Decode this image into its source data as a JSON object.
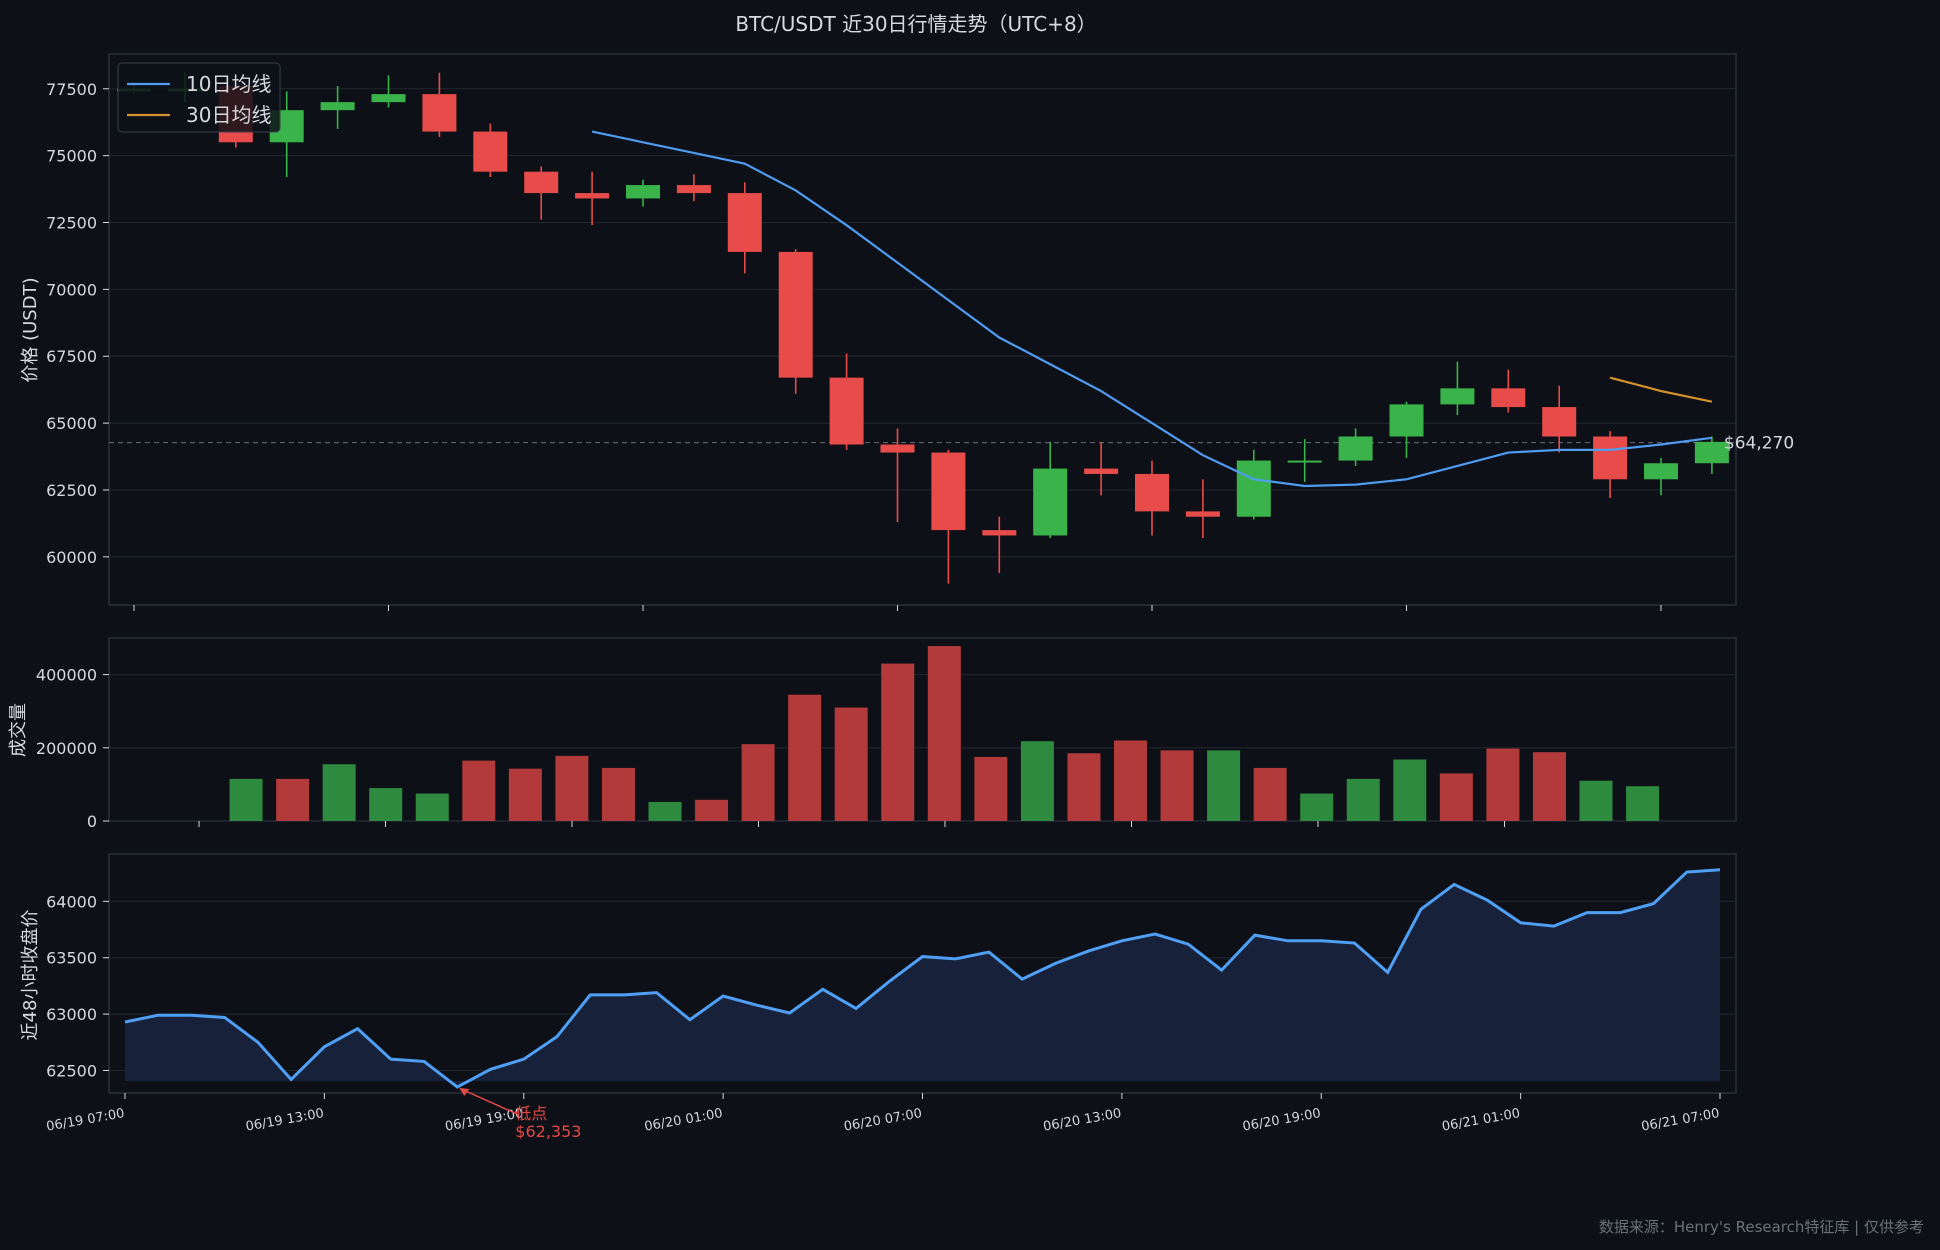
{
  "title": "BTC/USDT  近30日行情走势（UTC+8）",
  "footer": "数据来源：Henry's Research特征库 | 仅供参考",
  "colors": {
    "background": "#0d1017",
    "panel_border": "#2a2f3a",
    "grid": "#22262f",
    "text": "#d6d9de",
    "up": "#3ab44a",
    "down": "#e84c4a",
    "up_volume": "#2e8a3e",
    "down_volume": "#b23a3a",
    "ma10": "#4f9bf0",
    "ma30": "#d4932a",
    "close_line": "#4f9ff5",
    "close_fill": "#17223a",
    "annotation": "#e04a45",
    "footer": "#6b7079"
  },
  "chart_data": [
    {
      "type": "candlestick",
      "name": "price",
      "ylabel": "价格 (USDT)",
      "ylim": [
        58200,
        78800
      ],
      "yticks": [
        60000,
        62500,
        65000,
        67500,
        70000,
        72500,
        75000,
        77500
      ],
      "grid": true,
      "legend": {
        "placement": "top-left",
        "entries": [
          {
            "label": "10日均线",
            "color": "#4f9bf0"
          },
          {
            "label": "30日均线",
            "color": "#d4932a"
          }
        ]
      },
      "candles": [
        {
          "open": 77400,
          "high": 77700,
          "low": 77300,
          "close": 77500
        },
        {
          "open": 77400,
          "high": 78100,
          "low": 77000,
          "close": 77500
        },
        {
          "open": 77600,
          "high": 77800,
          "low": 75300,
          "close": 75500
        },
        {
          "open": 75500,
          "high": 77400,
          "low": 74200,
          "close": 76700
        },
        {
          "open": 76700,
          "high": 77600,
          "low": 76000,
          "close": 77000
        },
        {
          "open": 77000,
          "high": 78000,
          "low": 76800,
          "close": 77300
        },
        {
          "open": 77300,
          "high": 78100,
          "low": 75700,
          "close": 75900
        },
        {
          "open": 75900,
          "high": 76200,
          "low": 74200,
          "close": 74400
        },
        {
          "open": 74400,
          "high": 74600,
          "low": 72600,
          "close": 73600
        },
        {
          "open": 73600,
          "high": 74400,
          "low": 72400,
          "close": 73400
        },
        {
          "open": 73400,
          "high": 74100,
          "low": 73100,
          "close": 73900
        },
        {
          "open": 73900,
          "high": 74300,
          "low": 73300,
          "close": 73600
        },
        {
          "open": 73600,
          "high": 74000,
          "low": 70600,
          "close": 71400
        },
        {
          "open": 71400,
          "high": 71500,
          "low": 66100,
          "close": 66700
        },
        {
          "open": 66700,
          "high": 67600,
          "low": 64000,
          "close": 64200
        },
        {
          "open": 64200,
          "high": 64800,
          "low": 61300,
          "close": 63900
        },
        {
          "open": 63900,
          "high": 64000,
          "low": 59000,
          "close": 61000
        },
        {
          "open": 61000,
          "high": 61500,
          "low": 59400,
          "close": 60800
        },
        {
          "open": 60800,
          "high": 64300,
          "low": 60700,
          "close": 63300
        },
        {
          "open": 63300,
          "high": 64300,
          "low": 62300,
          "close": 63100
        },
        {
          "open": 63100,
          "high": 63600,
          "low": 60800,
          "close": 61700
        },
        {
          "open": 61700,
          "high": 62900,
          "low": 60700,
          "close": 61500
        },
        {
          "open": 61500,
          "high": 64000,
          "low": 61400,
          "close": 63600
        },
        {
          "open": 63600,
          "high": 64400,
          "low": 62800,
          "close": 63600
        },
        {
          "open": 63600,
          "high": 64800,
          "low": 63400,
          "close": 64500
        },
        {
          "open": 64500,
          "high": 65800,
          "low": 63700,
          "close": 65700
        },
        {
          "open": 65700,
          "high": 67300,
          "low": 65300,
          "close": 66300
        },
        {
          "open": 66300,
          "high": 67000,
          "low": 65400,
          "close": 65600
        },
        {
          "open": 65600,
          "high": 66400,
          "low": 63900,
          "close": 64500
        },
        {
          "open": 64500,
          "high": 64700,
          "low": 62200,
          "close": 62900
        },
        {
          "open": 62900,
          "high": 63700,
          "low": 62300,
          "close": 63500
        },
        {
          "open": 63500,
          "high": 64500,
          "low": 63100,
          "close": 64300
        }
      ],
      "ma10": [
        null,
        null,
        null,
        null,
        null,
        null,
        null,
        null,
        null,
        75900,
        75500,
        75100,
        74700,
        73700,
        72400,
        71000,
        69600,
        68200,
        67200,
        66200,
        65000,
        63800,
        62900,
        62650,
        62700,
        62900,
        63400,
        63900,
        64000,
        64000,
        64200,
        64450
      ],
      "ma30": [
        null,
        null,
        null,
        null,
        null,
        null,
        null,
        null,
        null,
        null,
        null,
        null,
        null,
        null,
        null,
        null,
        null,
        null,
        null,
        null,
        null,
        null,
        null,
        null,
        null,
        null,
        null,
        null,
        null,
        66700,
        66200,
        65800
      ],
      "last_price": {
        "value": 64270,
        "label": "$64,270"
      }
    },
    {
      "type": "bar",
      "name": "volume",
      "ylabel": "成交量",
      "ylim": [
        0,
        500000
      ],
      "yticks": [
        0,
        200000,
        400000
      ],
      "grid": true,
      "values": [
        0,
        115000,
        115000,
        155000,
        90000,
        75000,
        165000,
        143000,
        178000,
        145000,
        52000,
        58000,
        210000,
        345000,
        310000,
        430000,
        478000,
        175000,
        218000,
        185000,
        220000,
        193000,
        193000,
        145000,
        75000,
        115000,
        168000,
        130000,
        198000,
        188000,
        110000,
        95000
      ],
      "direction": [
        "up",
        "up",
        "down",
        "up",
        "up",
        "up",
        "down",
        "down",
        "down",
        "down",
        "up",
        "down",
        "down",
        "down",
        "down",
        "down",
        "down",
        "down",
        "up",
        "down",
        "down",
        "down",
        "up",
        "down",
        "up",
        "up",
        "up",
        "down",
        "down",
        "down",
        "up",
        "up"
      ]
    },
    {
      "type": "area",
      "name": "close_48h",
      "ylabel": "近48小时收盘价",
      "ylim": [
        62300,
        64420
      ],
      "yticks": [
        62500,
        63000,
        63500,
        64000
      ],
      "grid": true,
      "x_tick_labels": [
        "06/19 07:00",
        "06/19 13:00",
        "06/19 19:00",
        "06/20 01:00",
        "06/20 07:00",
        "06/20 13:00",
        "06/20 19:00",
        "06/21 01:00",
        "06/21 07:00"
      ],
      "x_start_hour": 0,
      "x_end_hour": 48,
      "values": [
        62930,
        62990,
        62990,
        62970,
        62750,
        62420,
        62710,
        62870,
        62600,
        62580,
        62353,
        62510,
        62600,
        62800,
        63170,
        63170,
        63190,
        62950,
        63160,
        63080,
        63010,
        63220,
        63050,
        63290,
        63510,
        63490,
        63550,
        63310,
        63450,
        63560,
        63650,
        63710,
        63620,
        63390,
        63700,
        63650,
        63650,
        63630,
        63370,
        63930,
        64150,
        64010,
        63810,
        63780,
        63900,
        63900,
        63980,
        64260,
        64280
      ],
      "annotation": {
        "index": 10,
        "label": "低点",
        "value_label": "$62,353"
      }
    }
  ]
}
